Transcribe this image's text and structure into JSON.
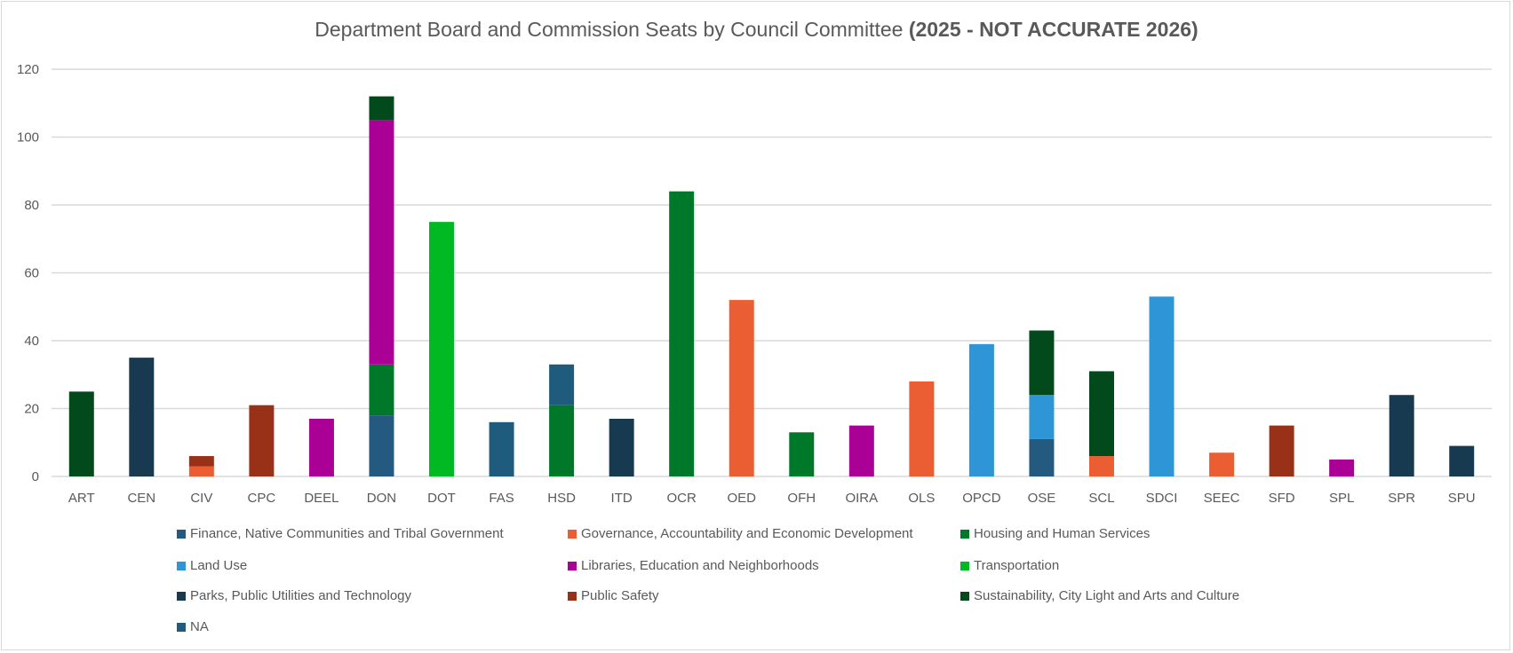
{
  "chart_data": {
    "type": "bar",
    "stacked": true,
    "title": "Department Board and Commission Seats by Council Committee",
    "title_bold": "(2025 - NOT ACCURATE 2026)",
    "xlabel": "",
    "ylabel": "",
    "ylim": [
      0,
      120
    ],
    "yticks": [
      "0",
      "20",
      "40",
      "60",
      "80",
      "100",
      "120"
    ],
    "grid": true,
    "legend_position": "bottom",
    "categories": [
      "ART",
      "CEN",
      "CIV",
      "CPC",
      "DEEL",
      "DON",
      "DOT",
      "FAS",
      "HSD",
      "ITD",
      "OCR",
      "OED",
      "OFH",
      "OIRA",
      "OLS",
      "OPCD",
      "OSE",
      "SCL",
      "SDCI",
      "SEEC",
      "SFD",
      "SPL",
      "SPR",
      "SPU"
    ],
    "series": [
      {
        "name": "Finance, Native Communities and Tribal Government",
        "color": "#245a80",
        "values": [
          0,
          0,
          0,
          0,
          0,
          18,
          0,
          0,
          0,
          0,
          0,
          0,
          0,
          0,
          0,
          0,
          11,
          0,
          0,
          0,
          0,
          0,
          0,
          0
        ]
      },
      {
        "name": "Governance, Accountability and Economic Development",
        "color": "#eb5e34",
        "values": [
          0,
          0,
          3,
          0,
          0,
          0,
          0,
          0,
          0,
          0,
          0,
          52,
          0,
          0,
          28,
          0,
          0,
          6,
          0,
          7,
          0,
          0,
          0,
          0
        ]
      },
      {
        "name": "Housing and Human Services",
        "color": "#00782a",
        "values": [
          0,
          0,
          0,
          0,
          0,
          15,
          0,
          0,
          21,
          0,
          84,
          0,
          13,
          0,
          0,
          0,
          0,
          0,
          0,
          0,
          0,
          0,
          0,
          0
        ]
      },
      {
        "name": "Land Use",
        "color": "#2e95d6",
        "values": [
          0,
          0,
          0,
          0,
          0,
          0,
          0,
          0,
          0,
          0,
          0,
          0,
          0,
          0,
          0,
          39,
          13,
          0,
          53,
          0,
          0,
          0,
          0,
          0
        ]
      },
      {
        "name": "Libraries, Education and Neighborhoods",
        "color": "#aa0096",
        "values": [
          0,
          0,
          0,
          0,
          17,
          72,
          0,
          0,
          0,
          0,
          0,
          0,
          0,
          15,
          0,
          0,
          0,
          0,
          0,
          0,
          0,
          5,
          0,
          0
        ]
      },
      {
        "name": "Transportation",
        "color": "#00b923",
        "values": [
          0,
          0,
          0,
          0,
          0,
          0,
          75,
          0,
          0,
          0,
          0,
          0,
          0,
          0,
          0,
          0,
          0,
          0,
          0,
          0,
          0,
          0,
          0,
          0
        ]
      },
      {
        "name": "Parks, Public Utilities and Technology",
        "color": "#183a50",
        "values": [
          0,
          35,
          0,
          0,
          0,
          0,
          0,
          0,
          0,
          17,
          0,
          0,
          0,
          0,
          0,
          0,
          0,
          0,
          0,
          0,
          0,
          0,
          24,
          9
        ]
      },
      {
        "name": "Public Safety",
        "color": "#993018",
        "values": [
          0,
          0,
          3,
          21,
          0,
          0,
          0,
          0,
          0,
          0,
          0,
          0,
          0,
          0,
          0,
          0,
          0,
          0,
          0,
          0,
          15,
          0,
          0,
          0
        ]
      },
      {
        "name": "Sustainability, City Light and Arts and Culture",
        "color": "#02491b",
        "values": [
          25,
          0,
          0,
          0,
          0,
          7,
          0,
          0,
          0,
          0,
          0,
          0,
          0,
          0,
          0,
          0,
          19,
          25,
          0,
          0,
          0,
          0,
          0,
          0
        ]
      },
      {
        "name": "NA",
        "color": "#1f5b7d",
        "values": [
          0,
          0,
          0,
          0,
          0,
          0,
          0,
          16,
          12,
          0,
          0,
          0,
          0,
          0,
          0,
          0,
          0,
          0,
          0,
          0,
          0,
          0,
          0,
          0
        ]
      }
    ]
  }
}
